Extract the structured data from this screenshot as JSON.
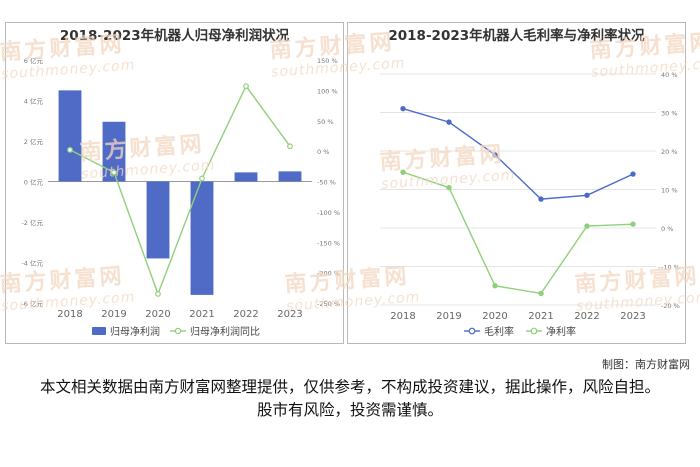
{
  "chart_data": [
    {
      "type": "bar",
      "title": "2018-2023年机器人归母净利润状况",
      "categories": [
        "2018",
        "2019",
        "2020",
        "2021",
        "2022",
        "2023"
      ],
      "series": [
        {
          "name": "归母净利润",
          "type": "bar",
          "axis": "left",
          "unit": "亿元",
          "color": "#4f6bc5",
          "values": [
            4.5,
            2.95,
            -3.8,
            -5.6,
            0.45,
            0.5
          ]
        },
        {
          "name": "归母净利润同比",
          "type": "line",
          "axis": "right",
          "unit": "%",
          "color": "#8fd07a",
          "values": [
            2,
            -35,
            -235,
            -45,
            107,
            8
          ]
        }
      ],
      "left_axis": {
        "ylim": [
          -6,
          6
        ],
        "ticks": [
          "6 亿元",
          "4 亿元",
          "2 亿元",
          "0 亿元",
          "-2 亿元",
          "-4 亿元",
          "-6 亿元"
        ]
      },
      "right_axis": {
        "ylim": [
          -250,
          150
        ],
        "ticks": [
          "150 %",
          "100 %",
          "50 %",
          "0 %",
          "-50 %",
          "-100 %",
          "-150 %",
          "-200 %",
          "-250 %"
        ]
      },
      "grid": false,
      "legend": "bottom"
    },
    {
      "type": "line",
      "title": "2018-2023年机器人毛利率与净利率状况",
      "categories": [
        "2018",
        "2019",
        "2020",
        "2021",
        "2022",
        "2023"
      ],
      "series": [
        {
          "name": "毛利率",
          "unit": "%",
          "color": "#4a6bc7",
          "values": [
            31,
            27.5,
            19,
            7.5,
            8.5,
            14
          ]
        },
        {
          "name": "净利率",
          "unit": "%",
          "color": "#8fd07a",
          "values": [
            14.5,
            10.5,
            -15,
            -17,
            0.5,
            1
          ]
        }
      ],
      "right_axis": {
        "ylim": [
          -20,
          40
        ],
        "ticks": [
          "40 %",
          "30 %",
          "20 %",
          "10 %",
          "0 %",
          "-10 %",
          "-20 %"
        ]
      },
      "grid": true,
      "legend": "bottom"
    }
  ],
  "watermark": {
    "text": "南方财富网",
    "sub": "southmoney.com"
  },
  "credit": "制图：南方财富网",
  "disclaimer": "本文相关数据由南方财富网整理提供，仅供参考，不构成投资建议，据此操作，风险自担。股市有风险，投资需谨慎。"
}
